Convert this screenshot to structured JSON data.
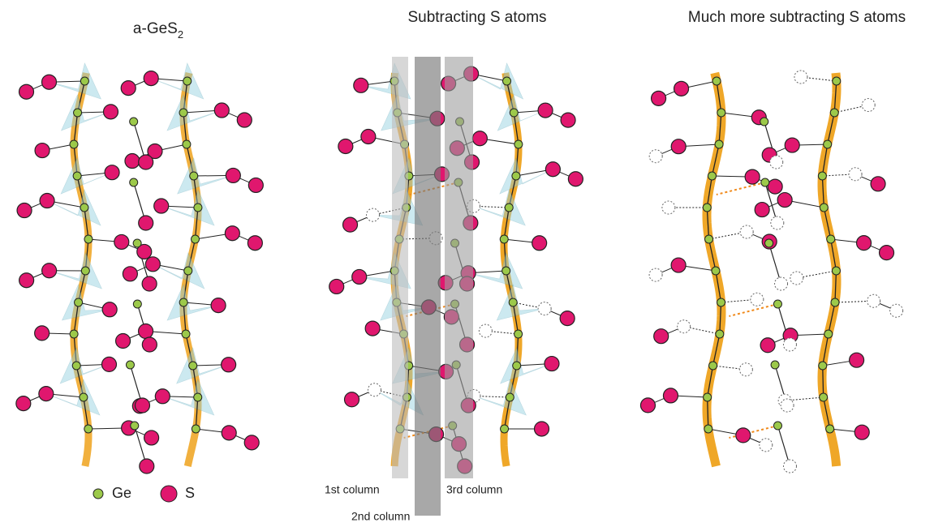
{
  "panels": [
    {
      "title": "a-GeS",
      "title_subscript": "2"
    },
    {
      "title": "Subtracting S atoms"
    },
    {
      "title": "Much more subtracting S atoms"
    }
  ],
  "legend": {
    "ge": "Ge",
    "s": "S"
  },
  "columns": [
    "1st column",
    "2nd column",
    "3rd column"
  ]
}
